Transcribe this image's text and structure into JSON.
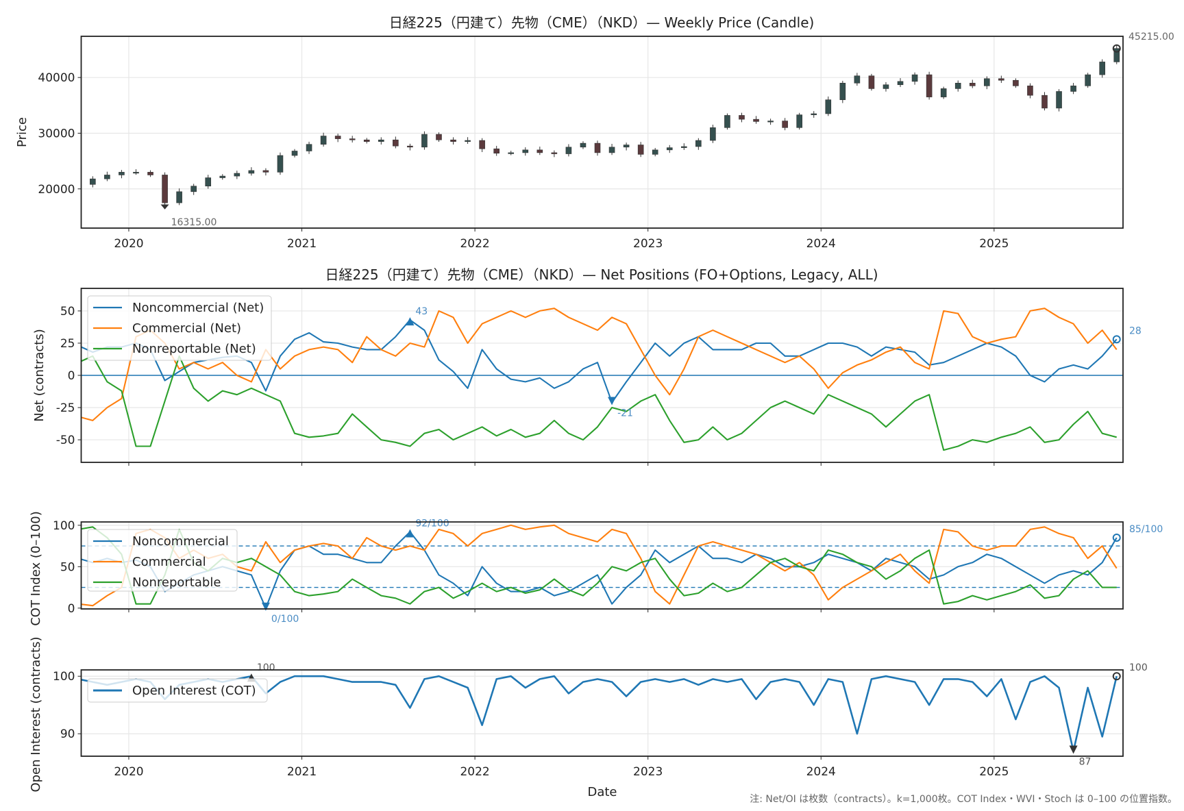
{
  "chart_data": [
    {
      "type": "candlestick",
      "title": "日経225（円建て）先物（CME）（NKD）— Weekly Price (Candle)",
      "ylabel": "Price",
      "ylim": [
        12960,
        47400
      ],
      "yticks": [
        20000,
        30000,
        40000
      ],
      "xlim": [
        2019.725,
        2025.745
      ],
      "xticks": [
        "2020",
        "2021",
        "2022",
        "2023",
        "2024",
        "2025"
      ],
      "annotations": {
        "max_label": "45215.00",
        "max_value": 45215,
        "min_label": "16315.00",
        "min_value": 16315,
        "min_date": "2020-03"
      },
      "colors": {
        "up": "#35504f",
        "down": "#5b3a3d",
        "accent_up": "#1aa3a3",
        "accent_down": "#e0403c"
      },
      "start": "2019-09",
      "close": [
        20800,
        21800,
        22500,
        23000,
        23000,
        22500,
        17500,
        19500,
        20500,
        22000,
        22300,
        22800,
        23300,
        23000,
        26000,
        26800,
        28000,
        29500,
        29000,
        28800,
        28500,
        28800,
        27700,
        27500,
        29800,
        28800,
        28500,
        28700,
        27200,
        26400,
        26500,
        27000,
        26500,
        26300,
        27500,
        28200,
        26500,
        27500,
        27900,
        26200,
        27000,
        27400,
        27600,
        28700,
        31000,
        33200,
        32500,
        32100,
        32200,
        31000,
        33300,
        33500,
        36000,
        39000,
        40300,
        38000,
        38700,
        39300,
        40500,
        36500,
        38000,
        39000,
        38500,
        39800,
        39500,
        38500,
        36800,
        34500,
        37500,
        38500,
        40500,
        42800,
        45215
      ]
    },
    {
      "type": "line",
      "title": "日経225（円建て）先物（CME）（NKD）— Net Positions (FO+Options, Legacy, ALL)",
      "ylabel": "Net (contracts)",
      "ylim": [
        -67.5,
        67.5
      ],
      "yticks": [
        -50,
        -25,
        0,
        25,
        50
      ],
      "legend": "top-left",
      "start": "2019-09",
      "series": [
        {
          "name": "Noncommercial (Net)",
          "color": "#1f77b4",
          "values": [
            23,
            18,
            22,
            22,
            25,
            20,
            -4,
            3,
            10,
            12,
            14,
            15,
            10,
            -12,
            15,
            28,
            33,
            26,
            25,
            22,
            20,
            20,
            30,
            43,
            35,
            12,
            3,
            -10,
            20,
            5,
            -3,
            -5,
            -2,
            -10,
            -5,
            5,
            10,
            -21,
            -5,
            10,
            25,
            15,
            25,
            30,
            20,
            20,
            20,
            25,
            25,
            15,
            15,
            20,
            25,
            25,
            22,
            15,
            22,
            20,
            18,
            8,
            10,
            15,
            20,
            25,
            22,
            15,
            0,
            -5,
            5,
            8,
            5,
            15,
            28
          ]
        },
        {
          "name": "Commercial (Net)",
          "color": "#ff7f0e",
          "values": [
            -32,
            -35,
            -25,
            -18,
            30,
            35,
            25,
            5,
            10,
            5,
            10,
            0,
            -5,
            20,
            5,
            15,
            20,
            22,
            20,
            10,
            30,
            20,
            15,
            25,
            22,
            50,
            45,
            25,
            40,
            45,
            50,
            45,
            50,
            52,
            45,
            40,
            35,
            45,
            40,
            20,
            0,
            -15,
            5,
            30,
            35,
            30,
            25,
            20,
            15,
            10,
            15,
            5,
            -10,
            2,
            8,
            12,
            18,
            22,
            10,
            5,
            50,
            48,
            30,
            25,
            28,
            30,
            50,
            52,
            45,
            40,
            25,
            35,
            20
          ]
        },
        {
          "name": "Nonreportable (Net)",
          "color": "#2ca02c",
          "values": [
            10,
            15,
            -5,
            -12,
            -55,
            -55,
            -20,
            15,
            -10,
            -20,
            -12,
            -15,
            -10,
            -15,
            -20,
            -45,
            -48,
            -47,
            -45,
            -30,
            -40,
            -50,
            -52,
            -55,
            -45,
            -42,
            -50,
            -45,
            -40,
            -47,
            -42,
            -48,
            -45,
            -35,
            -45,
            -50,
            -40,
            -25,
            -28,
            -20,
            -15,
            -35,
            -52,
            -50,
            -40,
            -50,
            -45,
            -35,
            -25,
            -20,
            -25,
            -30,
            -15,
            -20,
            -25,
            -30,
            -40,
            -30,
            -20,
            -15,
            -58,
            -55,
            -50,
            -52,
            -48,
            -45,
            -40,
            -52,
            -50,
            -38,
            -28,
            -45,
            -48
          ]
        }
      ],
      "annotations": {
        "max_label": "43",
        "min_label": "-21",
        "last_label": "28"
      }
    },
    {
      "type": "line",
      "ylabel": "COT Index (0–100)",
      "ylim": [
        -1,
        104
      ],
      "yticks": [
        0,
        50,
        100
      ],
      "hlines": [
        25,
        75
      ],
      "legend": "top-left",
      "start": "2019-09",
      "series": [
        {
          "name": "Noncommercial",
          "color": "#1f77b4",
          "values": [
            60,
            55,
            60,
            55,
            58,
            50,
            20,
            30,
            40,
            45,
            50,
            45,
            40,
            0,
            45,
            70,
            75,
            65,
            65,
            60,
            55,
            55,
            75,
            92,
            70,
            40,
            30,
            15,
            50,
            30,
            20,
            20,
            25,
            15,
            20,
            30,
            40,
            5,
            25,
            40,
            70,
            55,
            65,
            75,
            60,
            60,
            55,
            65,
            60,
            50,
            50,
            55,
            65,
            60,
            55,
            45,
            60,
            55,
            50,
            35,
            40,
            50,
            55,
            65,
            60,
            50,
            40,
            30,
            40,
            45,
            40,
            55,
            85
          ]
        },
        {
          "name": "Commercial",
          "color": "#ff7f0e",
          "values": [
            5,
            3,
            15,
            25,
            90,
            95,
            85,
            60,
            70,
            60,
            65,
            50,
            45,
            80,
            55,
            70,
            75,
            78,
            75,
            60,
            85,
            75,
            70,
            75,
            70,
            95,
            90,
            75,
            90,
            95,
            100,
            95,
            98,
            100,
            90,
            85,
            80,
            95,
            90,
            60,
            20,
            5,
            40,
            75,
            80,
            75,
            70,
            65,
            55,
            45,
            55,
            40,
            10,
            25,
            35,
            45,
            55,
            65,
            45,
            30,
            95,
            92,
            75,
            70,
            75,
            75,
            95,
            98,
            90,
            85,
            60,
            75,
            48
          ]
        },
        {
          "name": "Nonreportable",
          "color": "#2ca02c",
          "values": [
            95,
            98,
            85,
            65,
            5,
            5,
            40,
            95,
            55,
            45,
            60,
            55,
            60,
            50,
            40,
            20,
            15,
            17,
            20,
            35,
            25,
            15,
            12,
            5,
            20,
            25,
            12,
            20,
            30,
            20,
            25,
            18,
            22,
            35,
            22,
            15,
            30,
            50,
            45,
            55,
            60,
            35,
            15,
            18,
            30,
            20,
            25,
            40,
            55,
            60,
            50,
            45,
            70,
            65,
            55,
            50,
            35,
            45,
            60,
            70,
            5,
            8,
            15,
            10,
            15,
            20,
            28,
            12,
            15,
            35,
            45,
            25,
            25
          ]
        }
      ],
      "annotations": {
        "max_label": "92/100",
        "min_label": "0/100",
        "last_label": "85/100"
      }
    },
    {
      "type": "line",
      "ylabel": "Open Interest (contracts)",
      "xlabel": "Date",
      "ylim": [
        86.1,
        101.1
      ],
      "yticks": [
        90,
        100
      ],
      "xticks": [
        "2020",
        "2021",
        "2022",
        "2023",
        "2024",
        "2025"
      ],
      "legend": "top-left",
      "start": "2019-09",
      "series": [
        {
          "name": "Open Interest (COT)",
          "color": "#1f77b4",
          "values": [
            99.5,
            99,
            98.5,
            99,
            99.5,
            99,
            96,
            98.5,
            99,
            99.5,
            99,
            99.5,
            100,
            97,
            99,
            100,
            100,
            100,
            99.5,
            99,
            99,
            99,
            98.5,
            94.5,
            99.5,
            100,
            99,
            98,
            91.5,
            99.5,
            100,
            98,
            99.5,
            100,
            97,
            99,
            99.5,
            99,
            96.5,
            99,
            99.5,
            99,
            99.5,
            98.5,
            99.5,
            99,
            99.5,
            96,
            99,
            99.5,
            99,
            95,
            99.5,
            99,
            90,
            99.5,
            100,
            99.5,
            99,
            95,
            99.5,
            99.5,
            99,
            96.5,
            99.5,
            92.5,
            99,
            100,
            98,
            87,
            98,
            89.5,
            100
          ]
        }
      ],
      "annotations": {
        "max_label": "100",
        "last_label": "100",
        "min_label": "87"
      }
    }
  ],
  "footnote": "注: Net/OI は枚数（contracts）。k=1,000枚。COT Index・WVI・Stoch は 0–100 の位置指数。"
}
